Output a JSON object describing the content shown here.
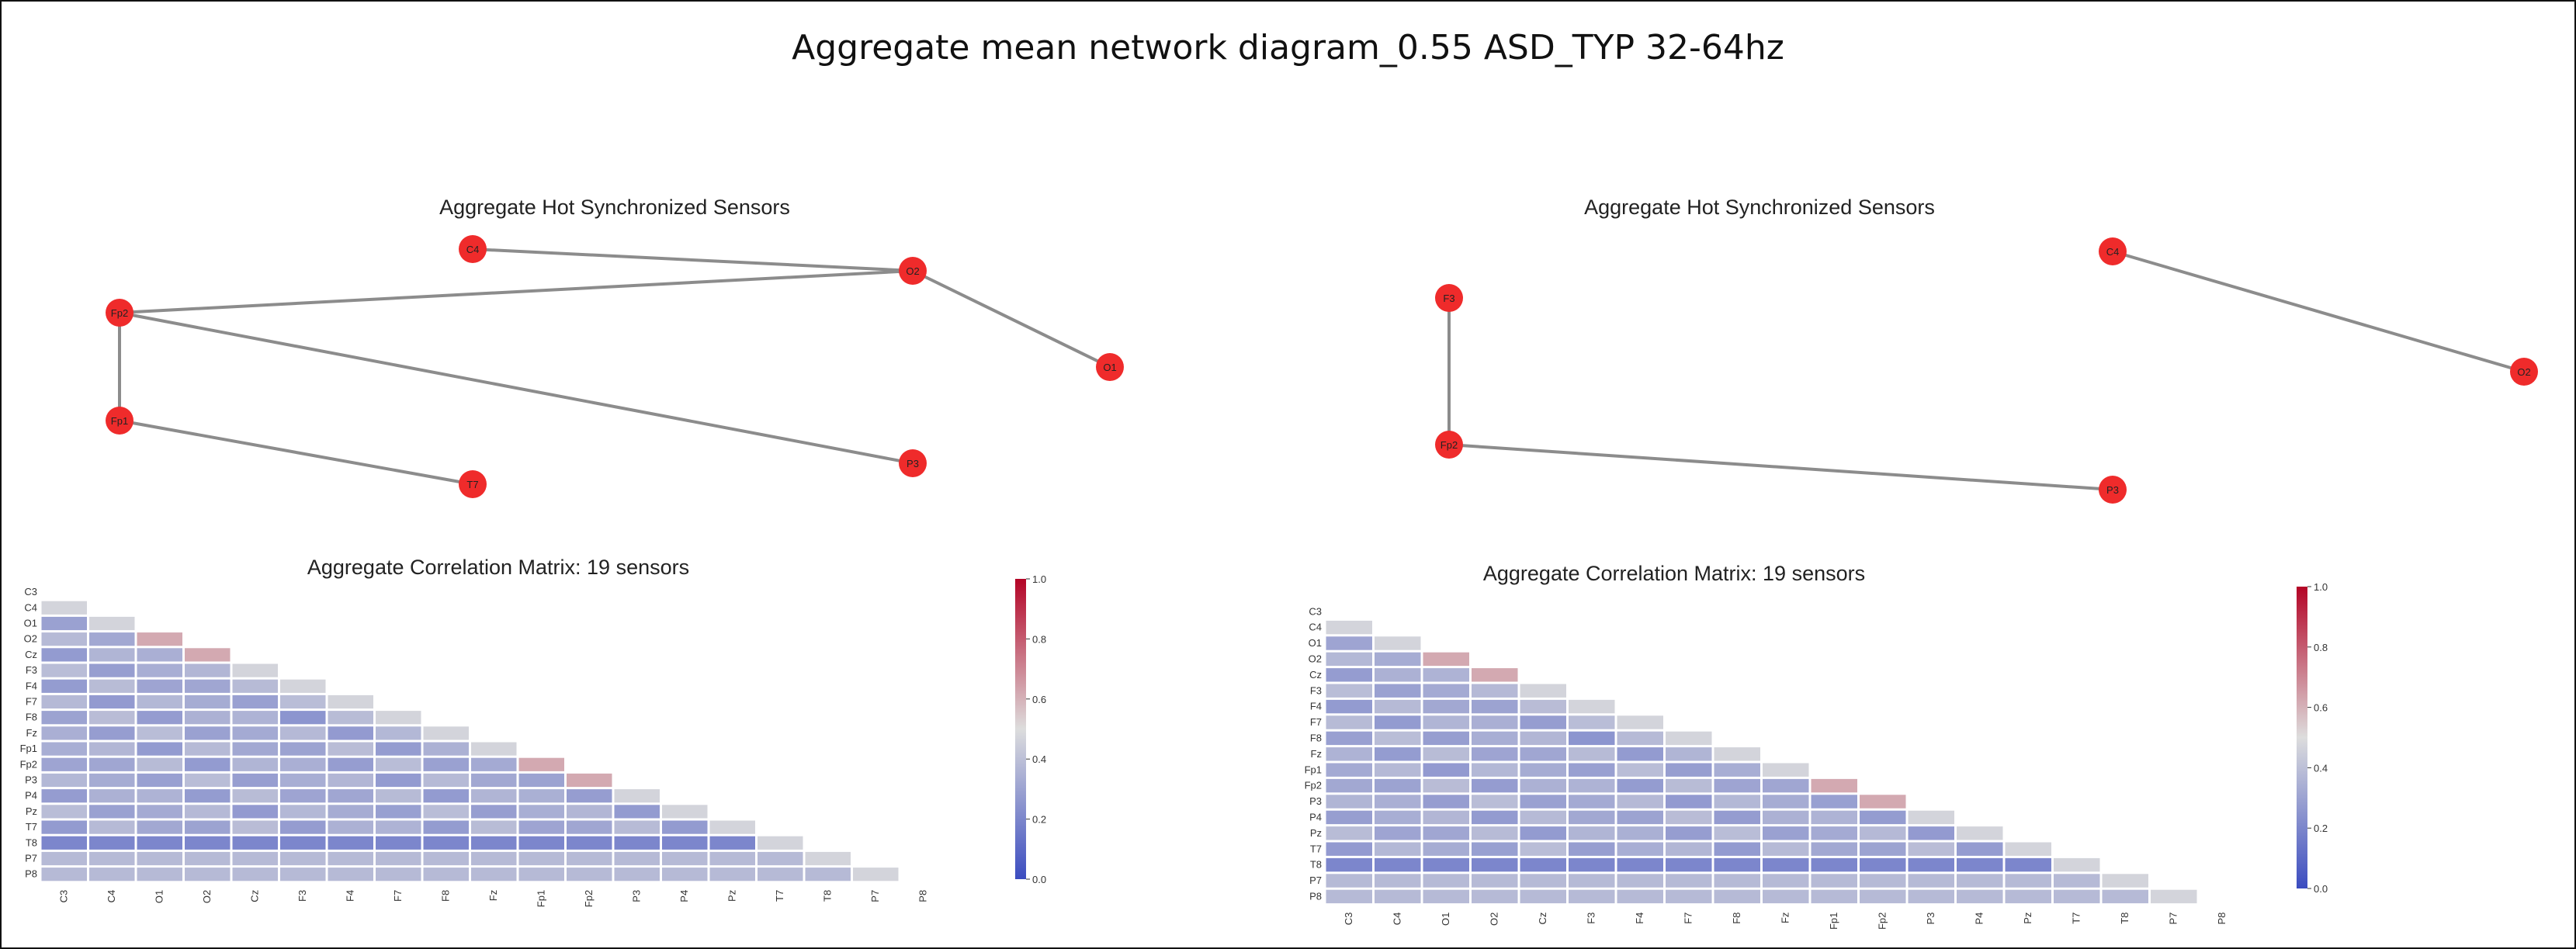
{
  "title": "Aggregate mean network diagram_0.55 ASD_TYP 32-64hz",
  "panels": [
    {
      "network": {
        "title": "Aggregate Hot Synchronized Sensors",
        "nodes": [
          "C4",
          "O2",
          "Fp2",
          "O1",
          "Fp1",
          "P3",
          "T7"
        ],
        "edges": [
          [
            "C4",
            "O2"
          ],
          [
            "Fp2",
            "O2"
          ],
          [
            "O2",
            "O1"
          ],
          [
            "Fp2",
            "Fp1"
          ],
          [
            "Fp2",
            "P3"
          ],
          [
            "Fp1",
            "T7"
          ]
        ]
      },
      "matrix": {
        "title": "Aggregate Correlation Matrix: 19 sensors",
        "colorbar_ticks": [
          "1.0",
          "0.8",
          "0.6",
          "0.4",
          "0.2",
          "0.0"
        ]
      }
    },
    {
      "network": {
        "title": "Aggregate Hot Synchronized Sensors",
        "nodes": [
          "F3",
          "Fp2",
          "C4",
          "O2",
          "P3"
        ],
        "edges": [
          [
            "F3",
            "Fp2"
          ],
          [
            "Fp2",
            "P3"
          ],
          [
            "C4",
            "O2"
          ]
        ]
      },
      "matrix": {
        "title": "Aggregate Correlation Matrix: 19 sensors",
        "colorbar_ticks": [
          "1.0",
          "0.8",
          "0.6",
          "0.4",
          "0.2",
          "0.0"
        ]
      }
    }
  ],
  "sensors": [
    "C3",
    "C4",
    "O1",
    "O2",
    "Cz",
    "F3",
    "F4",
    "F7",
    "F8",
    "Fz",
    "Fp1",
    "Fp2",
    "P3",
    "P4",
    "Pz",
    "T7",
    "T8",
    "P7",
    "P8"
  ],
  "colors": {
    "node": "#ef2b2b",
    "edge": "#8c8c8c",
    "cmap_low": "#3b4cc0",
    "cmap_mid": "#dddddd",
    "cmap_high": "#b40426"
  }
}
